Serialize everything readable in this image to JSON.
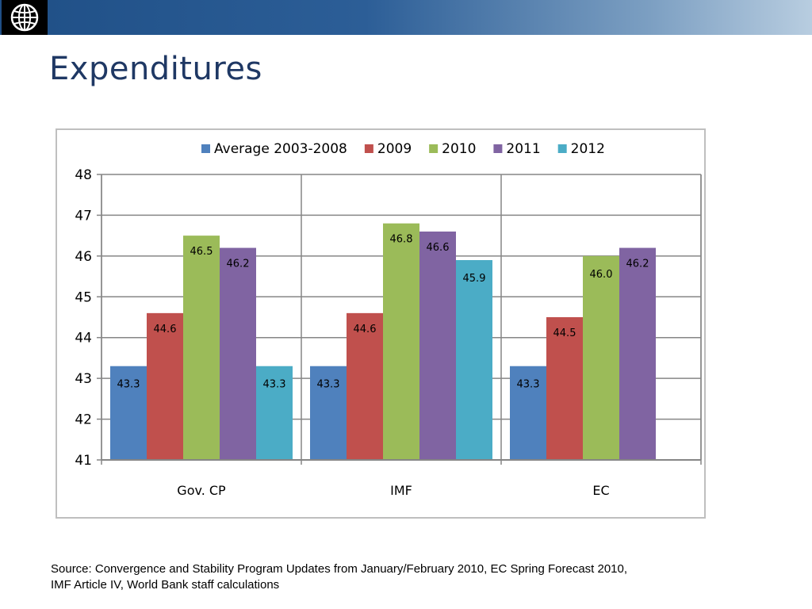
{
  "header": {
    "logo_icon": "world-bank-globe-icon",
    "bar_colors": [
      "#1f4f86",
      "#b8cde0"
    ]
  },
  "title": "Expenditures",
  "source_line1": "Source: Convergence  and Stability Program Updates from January/February 2010, EC Spring Forecast 2010,",
  "source_line2": "IMF Article IV, World Bank staff calculations",
  "chart_data": {
    "type": "bar",
    "categories": [
      "Gov. CP",
      "IMF",
      "EC"
    ],
    "ylim": [
      41,
      48
    ],
    "yticks": [
      41,
      42,
      43,
      44,
      45,
      46,
      47,
      48
    ],
    "grid": true,
    "legend_position": "top",
    "series": [
      {
        "name": "Average 2003-2008",
        "color": "#4f81bd",
        "values": [
          43.3,
          43.3,
          43.3
        ],
        "labels": [
          "43.3",
          "43.3",
          "43.3"
        ]
      },
      {
        "name": "2009",
        "color": "#c0504d",
        "values": [
          44.6,
          44.6,
          44.5
        ],
        "labels": [
          "44.6",
          "44.6",
          "44.5"
        ]
      },
      {
        "name": "2010",
        "color": "#9bbb59",
        "values": [
          46.5,
          46.8,
          46.0
        ],
        "labels": [
          "46.5",
          "46.8",
          "46.0"
        ]
      },
      {
        "name": "2011",
        "color": "#8064a2",
        "values": [
          46.2,
          46.6,
          46.2
        ],
        "labels": [
          "46.2",
          "46.6",
          "46.2"
        ]
      },
      {
        "name": "2012",
        "color": "#4bacc6",
        "values": [
          43.3,
          45.9,
          null
        ],
        "labels": [
          "43.3",
          "45.9",
          null
        ]
      }
    ]
  }
}
